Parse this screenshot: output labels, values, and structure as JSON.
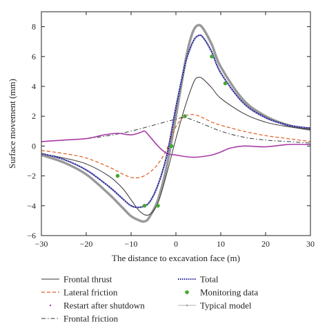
{
  "chart_data": {
    "type": "line",
    "xlabel": "The distance to excavation face (m)",
    "ylabel": "Surface movement (mm)",
    "xlim": [
      -30,
      30
    ],
    "ylim": [
      -6,
      9
    ],
    "xticks": [
      -30,
      -20,
      -10,
      0,
      10,
      20,
      30
    ],
    "yticks": [
      -6,
      -4,
      -2,
      0,
      2,
      4,
      6,
      8
    ],
    "grid": false,
    "legend_position": "bottom",
    "series": [
      {
        "name": "Frontal thrust",
        "color": "#333333",
        "style": "solid",
        "x": [
          -30,
          -25,
          -20,
          -15,
          -12,
          -10,
          -8,
          -6,
          -4,
          -2,
          0,
          2,
          4,
          5,
          6,
          8,
          10,
          15,
          20,
          25,
          30
        ],
        "y": [
          -0.5,
          -0.8,
          -1.2,
          -2.0,
          -2.8,
          -3.6,
          -4.4,
          -4.6,
          -3.8,
          -1.8,
          0.5,
          2.6,
          4.3,
          4.6,
          4.5,
          3.9,
          3.2,
          2.2,
          1.6,
          1.3,
          1.1
        ]
      },
      {
        "name": "Lateral friction",
        "color": "#e05a1c",
        "style": "dashed",
        "x": [
          -30,
          -25,
          -20,
          -15,
          -12,
          -10,
          -8,
          -6,
          -4,
          -2,
          0,
          2,
          4,
          6,
          8,
          10,
          15,
          20,
          25,
          30
        ],
        "y": [
          -0.3,
          -0.5,
          -0.8,
          -1.4,
          -1.85,
          -2.1,
          -2.1,
          -1.8,
          -1.2,
          -0.2,
          1.3,
          2.0,
          2.1,
          1.9,
          1.6,
          1.4,
          1.0,
          0.7,
          0.5,
          0.3
        ]
      },
      {
        "name": "Restart after shutdown",
        "color": "#a83aa8",
        "style": "solid",
        "x": [
          -30,
          -25,
          -20,
          -16,
          -13,
          -10,
          -8,
          -7,
          -6,
          -4,
          -2,
          0,
          2,
          4,
          6,
          8,
          10,
          12,
          15,
          20,
          25,
          30
        ],
        "y": [
          0.3,
          0.4,
          0.5,
          0.75,
          0.85,
          0.75,
          0.9,
          1.0,
          0.7,
          0.0,
          -0.5,
          -0.6,
          -0.7,
          -0.75,
          -0.7,
          -0.6,
          -0.4,
          -0.15,
          0.0,
          -0.05,
          0.1,
          0.1
        ]
      },
      {
        "name": "Total",
        "color": "#1f1f8f",
        "style": "solid",
        "x": [
          -30,
          -25,
          -20,
          -15,
          -12,
          -10,
          -8,
          -6,
          -4,
          -2,
          0,
          2,
          3,
          4,
          5,
          6,
          8,
          10,
          15,
          20,
          25,
          30
        ],
        "y": [
          -0.5,
          -0.9,
          -1.6,
          -2.7,
          -3.5,
          -4.0,
          -4.1,
          -3.8,
          -2.6,
          -0.6,
          2.6,
          5.4,
          6.4,
          7.1,
          7.4,
          7.3,
          6.3,
          4.9,
          2.9,
          1.9,
          1.4,
          1.2
        ]
      },
      {
        "name": "Monitoring data",
        "color": "#44a832",
        "style": "markers",
        "x": [
          -13,
          -7,
          -4,
          -1,
          2,
          8,
          11
        ],
        "y": [
          -2.0,
          -4.0,
          -4.0,
          0.0,
          2.0,
          6.0,
          4.2
        ]
      },
      {
        "name": "Frontal friction",
        "color": "#333333",
        "style": "dashdot",
        "x": [
          -30,
          -25,
          -20,
          -15,
          -10,
          -5,
          0,
          2,
          5,
          10,
          15,
          20,
          25,
          30
        ],
        "y": [
          0.3,
          0.4,
          0.5,
          0.7,
          1.0,
          1.4,
          1.8,
          1.9,
          1.6,
          1.0,
          0.6,
          0.4,
          0.3,
          0.2
        ]
      },
      {
        "name": "Typical model",
        "color": "#999999",
        "style": "thick",
        "x": [
          -30,
          -25,
          -20,
          -15,
          -12,
          -10,
          -8,
          -7,
          -6,
          -4,
          -2,
          0,
          2,
          3,
          4,
          5,
          6,
          8,
          10,
          15,
          20,
          25,
          30
        ],
        "y": [
          -0.6,
          -1.1,
          -1.9,
          -3.2,
          -4.1,
          -4.7,
          -5.0,
          -5.05,
          -4.8,
          -3.6,
          -1.3,
          2.0,
          5.5,
          6.9,
          7.8,
          8.1,
          7.9,
          6.8,
          5.3,
          3.1,
          2.0,
          1.4,
          1.1
        ]
      }
    ],
    "legend": [
      {
        "label": "Frontal thrust",
        "style": "solid",
        "color": "#333333"
      },
      {
        "label": "Total",
        "style": "dotted",
        "color": "#1f1f8f"
      },
      {
        "label": "Lateral friction",
        "style": "dashed",
        "color": "#e05a1c"
      },
      {
        "label": "Monitoring data",
        "style": "marker",
        "color": "#44a832"
      },
      {
        "label": "Restart after shutdown",
        "style": "dot",
        "color": "#a83aa8"
      },
      {
        "label": "Typical model",
        "style": "line-dot",
        "color": "#999999"
      },
      {
        "label": "Frontal friction",
        "style": "dashdot",
        "color": "#333333"
      }
    ]
  }
}
